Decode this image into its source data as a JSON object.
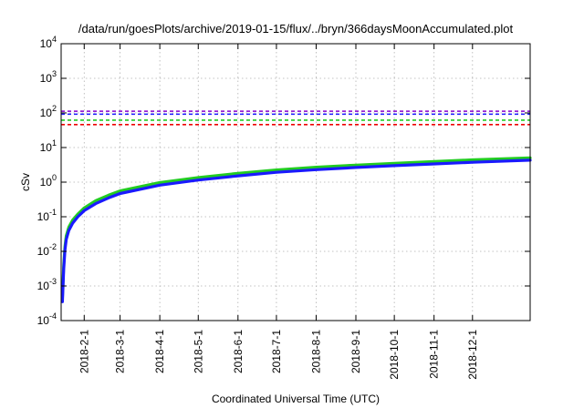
{
  "chart_data": {
    "type": "line",
    "title": "/data/run/goesPlots/archive/2019-01-15/flux/../bryn/366daysMoonAccumulated.plot",
    "xlabel": "Coordinated Universal Time (UTC)",
    "ylabel": "cSv",
    "yscale": "log",
    "ylim": [
      0.0001,
      10000
    ],
    "xlim": [
      "2018-01-14",
      "2019-01-15"
    ],
    "grid": true,
    "y_ticks": [
      {
        "value": 0.0001,
        "base": "10",
        "exp": "-4"
      },
      {
        "value": 0.001,
        "base": "10",
        "exp": "-3"
      },
      {
        "value": 0.01,
        "base": "10",
        "exp": "-2"
      },
      {
        "value": 0.1,
        "base": "10",
        "exp": "-1"
      },
      {
        "value": 1,
        "base": "10",
        "exp": "0"
      },
      {
        "value": 10,
        "base": "10",
        "exp": "1"
      },
      {
        "value": 100,
        "base": "10",
        "exp": "2"
      },
      {
        "value": 1000,
        "base": "10",
        "exp": "3"
      },
      {
        "value": 10000,
        "base": "10",
        "exp": "4"
      }
    ],
    "x_ticks": [
      {
        "date": "2018-02-01",
        "label": "2018-2-1"
      },
      {
        "date": "2018-03-01",
        "label": "2018-3-1"
      },
      {
        "date": "2018-04-01",
        "label": "2018-4-1"
      },
      {
        "date": "2018-05-01",
        "label": "2018-5-1"
      },
      {
        "date": "2018-06-01",
        "label": "2018-6-1"
      },
      {
        "date": "2018-07-01",
        "label": "2018-7-1"
      },
      {
        "date": "2018-08-01",
        "label": "2018-8-1"
      },
      {
        "date": "2018-09-01",
        "label": "2018-9-1"
      },
      {
        "date": "2018-10-01",
        "label": "2018-10-1"
      },
      {
        "date": "2018-11-01",
        "label": "2018-11-1"
      },
      {
        "date": "2018-12-01",
        "label": "2018-12-1"
      }
    ],
    "reference_lines": [
      {
        "value": 112,
        "color": "#8800cc",
        "style": "dashed"
      },
      {
        "value": 92,
        "color": "#1a1aff",
        "style": "dashed"
      },
      {
        "value": 62,
        "color": "#22cc22",
        "style": "dashed"
      },
      {
        "value": 46,
        "color": "#ee0000",
        "style": "dashed"
      }
    ],
    "series": [
      {
        "color": "#22cc22",
        "x": [
          "2018-01-15",
          "2018-01-16",
          "2018-01-17",
          "2018-01-18",
          "2018-01-20",
          "2018-01-23",
          "2018-01-27",
          "2018-02-01",
          "2018-02-10",
          "2018-02-20",
          "2018-03-01",
          "2018-04-01",
          "2018-05-01",
          "2018-06-01",
          "2018-07-01",
          "2018-08-01",
          "2018-09-01",
          "2018-10-01",
          "2018-11-01",
          "2018-12-01",
          "2019-01-15"
        ],
        "values": [
          0.00045,
          0.004,
          0.014,
          0.028,
          0.05,
          0.08,
          0.12,
          0.18,
          0.29,
          0.42,
          0.56,
          0.97,
          1.35,
          1.8,
          2.25,
          2.7,
          3.1,
          3.5,
          3.95,
          4.4,
          5.0
        ]
      },
      {
        "color": "#1a1aff",
        "x": [
          "2018-01-15",
          "2018-01-16",
          "2018-01-17",
          "2018-01-18",
          "2018-01-20",
          "2018-01-23",
          "2018-01-27",
          "2018-02-01",
          "2018-02-10",
          "2018-02-20",
          "2018-03-01",
          "2018-04-01",
          "2018-05-01",
          "2018-06-01",
          "2018-07-01",
          "2018-08-01",
          "2018-09-01",
          "2018-10-01",
          "2018-11-01",
          "2018-12-01",
          "2019-01-15"
        ],
        "values": [
          0.00035,
          0.003,
          0.011,
          0.022,
          0.04,
          0.065,
          0.1,
          0.15,
          0.24,
          0.35,
          0.47,
          0.82,
          1.15,
          1.52,
          1.92,
          2.3,
          2.65,
          3.0,
          3.35,
          3.75,
          4.3
        ]
      }
    ]
  }
}
